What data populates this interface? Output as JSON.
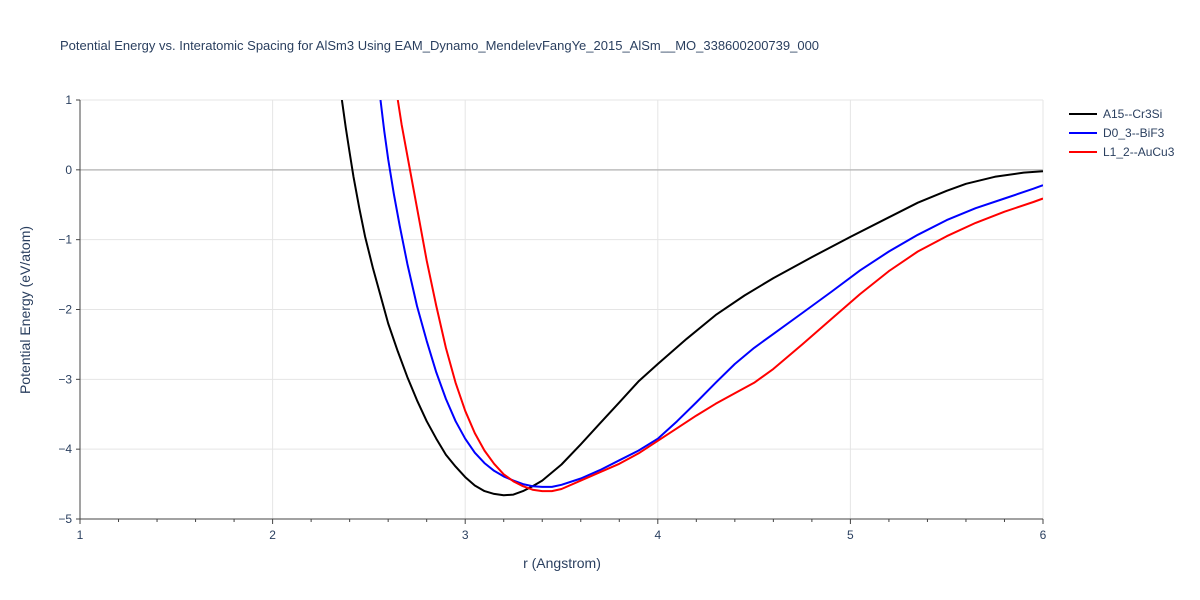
{
  "chart_data": {
    "type": "line",
    "title": "Potential Energy vs. Interatomic Spacing for AlSm3 Using EAM_Dynamo_MendelevFangYe_2015_AlSm__MO_338600200739_000",
    "xlabel": "r (Angstrom)",
    "ylabel": "Potential Energy (eV/atom)",
    "xlim": [
      1,
      6
    ],
    "ylim": [
      -5,
      1
    ],
    "xticks": [
      1,
      2,
      3,
      4,
      5,
      6
    ],
    "xtick_labels": [
      "1",
      "2",
      "3",
      "4",
      "5",
      "6"
    ],
    "yticks": [
      1,
      0,
      -1,
      -2,
      -3,
      -4,
      -5
    ],
    "ytick_labels": [
      "1",
      "0",
      "−1",
      "−2",
      "−3",
      "−4",
      "−5"
    ],
    "grid": true,
    "legend_position": "top-right",
    "series": [
      {
        "name": "A15--Cr3Si",
        "color": "#000000",
        "x": [
          2.36,
          2.38,
          2.4,
          2.42,
          2.45,
          2.48,
          2.52,
          2.56,
          2.6,
          2.65,
          2.7,
          2.75,
          2.8,
          2.85,
          2.9,
          2.95,
          3.0,
          3.05,
          3.1,
          3.15,
          3.2,
          3.25,
          3.3,
          3.35,
          3.4,
          3.5,
          3.6,
          3.7,
          3.8,
          3.9,
          4.0,
          4.15,
          4.3,
          4.45,
          4.6,
          4.8,
          5.0,
          5.2,
          5.35,
          5.5,
          5.6,
          5.75,
          5.9,
          6.0
        ],
        "y": [
          1.0,
          0.6,
          0.25,
          -0.1,
          -0.55,
          -0.95,
          -1.4,
          -1.8,
          -2.2,
          -2.6,
          -2.97,
          -3.3,
          -3.6,
          -3.85,
          -4.08,
          -4.25,
          -4.4,
          -4.52,
          -4.6,
          -4.64,
          -4.66,
          -4.65,
          -4.6,
          -4.53,
          -4.45,
          -4.22,
          -3.93,
          -3.63,
          -3.33,
          -3.03,
          -2.78,
          -2.42,
          -2.08,
          -1.8,
          -1.55,
          -1.25,
          -0.96,
          -0.68,
          -0.47,
          -0.3,
          -0.2,
          -0.1,
          -0.04,
          -0.02
        ]
      },
      {
        "name": "D0_3--BiF3",
        "color": "#0000ff",
        "x": [
          2.56,
          2.58,
          2.6,
          2.63,
          2.66,
          2.7,
          2.75,
          2.8,
          2.85,
          2.9,
          2.95,
          3.0,
          3.05,
          3.1,
          3.15,
          3.2,
          3.25,
          3.3,
          3.35,
          3.4,
          3.45,
          3.5,
          3.6,
          3.7,
          3.8,
          3.9,
          4.0,
          4.1,
          4.2,
          4.3,
          4.4,
          4.5,
          4.6,
          4.75,
          4.9,
          5.05,
          5.2,
          5.35,
          5.5,
          5.65,
          5.8,
          5.95,
          6.0
        ],
        "y": [
          1.0,
          0.55,
          0.15,
          -0.35,
          -0.8,
          -1.35,
          -1.95,
          -2.45,
          -2.9,
          -3.28,
          -3.6,
          -3.85,
          -4.05,
          -4.2,
          -4.31,
          -4.39,
          -4.45,
          -4.5,
          -4.53,
          -4.54,
          -4.54,
          -4.51,
          -4.42,
          -4.3,
          -4.16,
          -4.02,
          -3.85,
          -3.6,
          -3.33,
          -3.05,
          -2.78,
          -2.55,
          -2.35,
          -2.05,
          -1.75,
          -1.44,
          -1.17,
          -0.93,
          -0.72,
          -0.55,
          -0.41,
          -0.27,
          -0.22
        ]
      },
      {
        "name": "L1_2--AuCu3",
        "color": "#ff0000",
        "x": [
          2.65,
          2.67,
          2.7,
          2.73,
          2.76,
          2.8,
          2.85,
          2.9,
          2.95,
          3.0,
          3.05,
          3.1,
          3.15,
          3.2,
          3.25,
          3.3,
          3.35,
          3.4,
          3.45,
          3.5,
          3.6,
          3.7,
          3.8,
          3.9,
          4.0,
          4.1,
          4.2,
          4.3,
          4.4,
          4.5,
          4.6,
          4.75,
          4.9,
          5.05,
          5.2,
          5.35,
          5.5,
          5.65,
          5.8,
          5.95,
          6.0
        ],
        "y": [
          1.0,
          0.65,
          0.2,
          -0.25,
          -0.7,
          -1.3,
          -1.95,
          -2.55,
          -3.05,
          -3.45,
          -3.77,
          -4.02,
          -4.21,
          -4.36,
          -4.46,
          -4.53,
          -4.58,
          -4.6,
          -4.6,
          -4.57,
          -4.45,
          -4.33,
          -4.21,
          -4.06,
          -3.88,
          -3.7,
          -3.52,
          -3.35,
          -3.2,
          -3.05,
          -2.85,
          -2.5,
          -2.14,
          -1.78,
          -1.45,
          -1.17,
          -0.95,
          -0.76,
          -0.6,
          -0.46,
          -0.41
        ]
      }
    ]
  }
}
